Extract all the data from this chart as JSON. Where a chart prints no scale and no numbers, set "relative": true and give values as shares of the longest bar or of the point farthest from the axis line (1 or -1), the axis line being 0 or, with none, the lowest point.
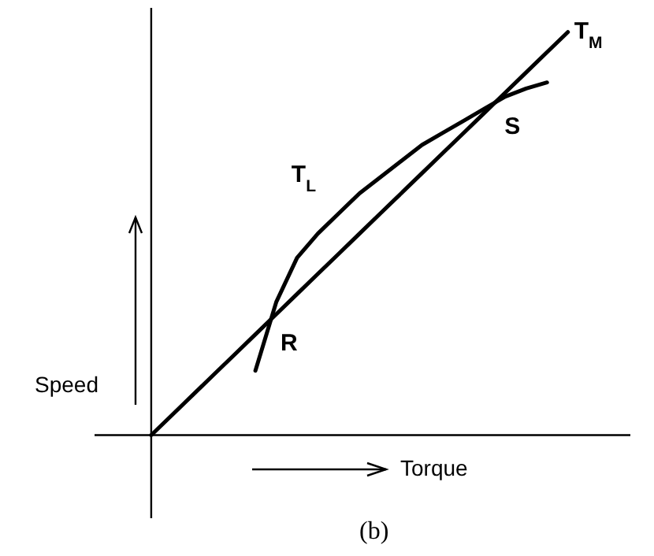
{
  "chart_data": {
    "type": "line",
    "relative": true,
    "grid": false,
    "legend": false,
    "marker": "none",
    "line_style": "solid",
    "xlabel": "Torque",
    "ylabel": "Speed",
    "categories": [
      null,
      null,
      null,
      null,
      null,
      null,
      null,
      null,
      null,
      null,
      null,
      null,
      null,
      null,
      null,
      null,
      null,
      null,
      null,
      null,
      null
    ],
    "series": [
      {
        "name": "T$_{M}$",
        "color": "#000000",
        "values": [
          0,
          0.05,
          0.1,
          0.15,
          0.2,
          0.25,
          0.3,
          0.35,
          0.4,
          0.45,
          0.5,
          0.55,
          0.6,
          0.65,
          0.7,
          0.75,
          0.8,
          0.85,
          0.9,
          0.95,
          1
        ]
      },
      {
        "name": "T$_{L}$",
        "color": "#000000",
        "values": [
          null,
          null,
          null,
          null,
          null,
          0.16,
          0.33,
          0.44,
          0.5,
          0.55,
          0.6,
          0.64,
          0.68,
          0.72,
          0.75,
          0.78,
          0.81,
          0.84,
          0.86,
          0.875,
          null
        ]
      }
    ],
    "annotations": [
      "R",
      "S",
      "(b)"
    ]
  }
}
